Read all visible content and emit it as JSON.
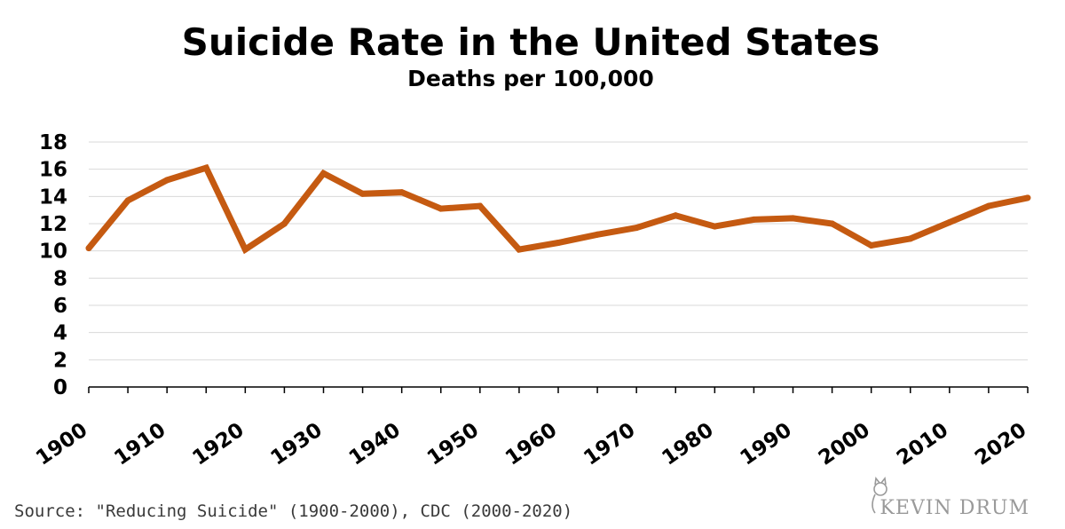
{
  "chart_data": {
    "type": "line",
    "title": "Suicide Rate in the United States",
    "subtitle": "Deaths per 100,000",
    "xlabel": "",
    "ylabel": "",
    "x": [
      1900,
      1905,
      1910,
      1915,
      1920,
      1925,
      1930,
      1935,
      1940,
      1945,
      1950,
      1955,
      1960,
      1965,
      1970,
      1975,
      1980,
      1985,
      1990,
      1995,
      2000,
      2005,
      2010,
      2015,
      2020
    ],
    "series": [
      {
        "name": "Suicide rate",
        "color": "#C55A11",
        "values": [
          10.2,
          13.7,
          15.2,
          16.1,
          10.1,
          12.0,
          15.7,
          14.2,
          14.3,
          13.1,
          13.3,
          10.1,
          10.6,
          11.2,
          11.7,
          12.6,
          11.8,
          12.3,
          12.4,
          12.0,
          10.4,
          10.9,
          12.1,
          13.3,
          13.9
        ]
      }
    ],
    "ylim": [
      0,
      18
    ],
    "yticks": [
      "0",
      "2",
      "4",
      "6",
      "8",
      "10",
      "12",
      "14",
      "16",
      "18"
    ],
    "xtick_labels": [
      "1900",
      "1910",
      "1920",
      "1930",
      "1940",
      "1950",
      "1960",
      "1970",
      "1980",
      "1990",
      "2000",
      "2010",
      "2020"
    ],
    "grid": true,
    "legend": "none"
  },
  "footer": {
    "source": "Source: \"Reducing Suicide\" (1900-2000), CDC (2000-2020)",
    "brand": "KEVIN DRUM"
  }
}
